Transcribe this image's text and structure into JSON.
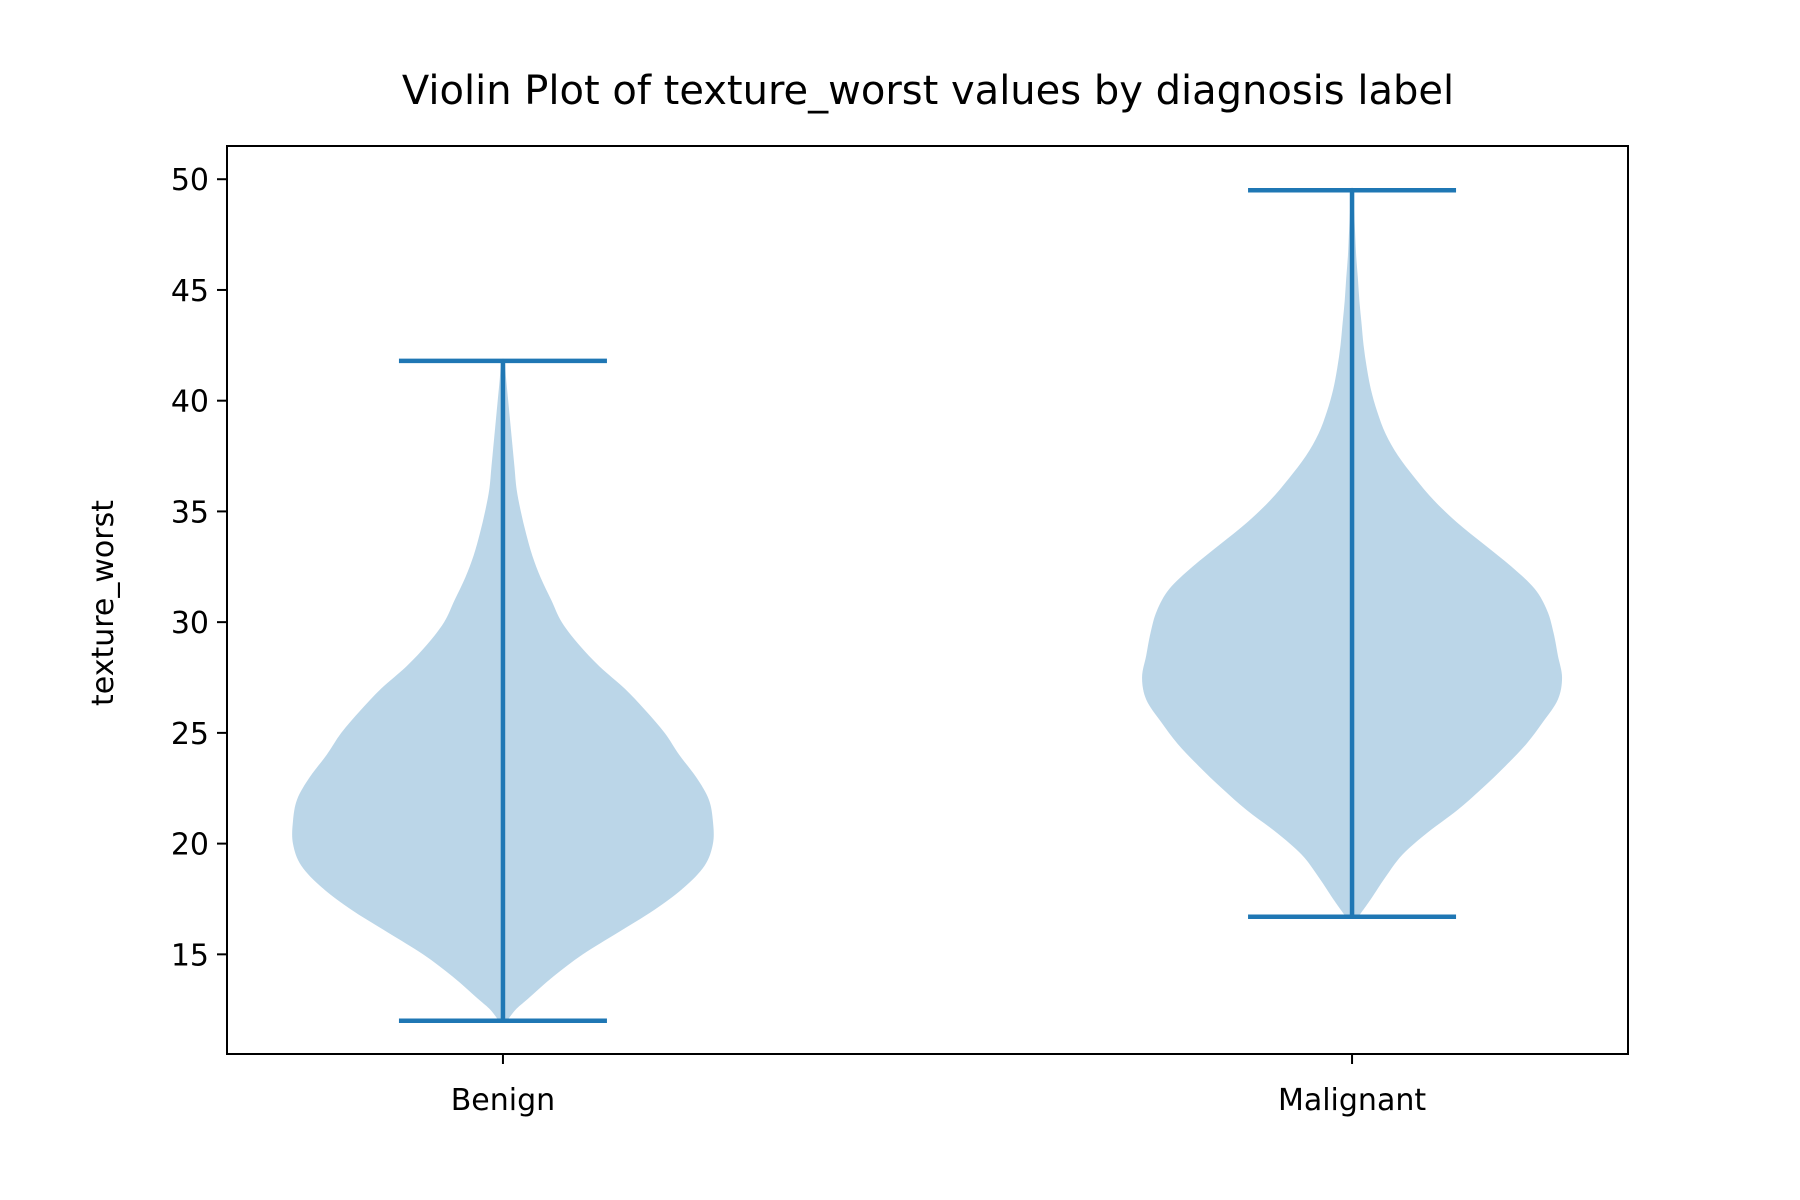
{
  "chart_data": {
    "type": "violin",
    "title": "Violin Plot of texture_worst values by diagnosis label",
    "xlabel": "",
    "ylabel": "texture_worst",
    "ylim": [
      10.5,
      51.5
    ],
    "yticks": [
      15,
      20,
      25,
      30,
      35,
      40,
      45,
      50
    ],
    "grid": false,
    "categories": [
      "Benign",
      "Malignant"
    ],
    "colors": {
      "body": "#1f77b4",
      "body_opacity": 0.3,
      "lines": "#1f77b4",
      "axes": "#000000"
    },
    "violins": [
      {
        "category": "Benign",
        "min": 12.0,
        "max": 41.8,
        "density_profile": [
          [
            12.0,
            0.02
          ],
          [
            12.5,
            0.06
          ],
          [
            13.0,
            0.12
          ],
          [
            14.0,
            0.24
          ],
          [
            15.0,
            0.38
          ],
          [
            16.0,
            0.55
          ],
          [
            17.0,
            0.72
          ],
          [
            18.0,
            0.86
          ],
          [
            19.0,
            0.96
          ],
          [
            20.0,
            1.0
          ],
          [
            21.0,
            1.0
          ],
          [
            22.0,
            0.98
          ],
          [
            23.0,
            0.92
          ],
          [
            24.0,
            0.84
          ],
          [
            25.0,
            0.77
          ],
          [
            26.0,
            0.68
          ],
          [
            27.0,
            0.58
          ],
          [
            28.0,
            0.46
          ],
          [
            29.0,
            0.36
          ],
          [
            30.0,
            0.28
          ],
          [
            31.0,
            0.23
          ],
          [
            32.0,
            0.18
          ],
          [
            33.0,
            0.14
          ],
          [
            34.0,
            0.11
          ],
          [
            35.0,
            0.085
          ],
          [
            36.0,
            0.065
          ],
          [
            37.0,
            0.055
          ],
          [
            38.0,
            0.045
          ],
          [
            39.0,
            0.035
          ],
          [
            40.0,
            0.025
          ],
          [
            41.0,
            0.015
          ],
          [
            41.8,
            0.008
          ]
        ]
      },
      {
        "category": "Malignant",
        "min": 16.7,
        "max": 49.5,
        "density_profile": [
          [
            16.7,
            0.03
          ],
          [
            17.5,
            0.09
          ],
          [
            18.5,
            0.16
          ],
          [
            19.5,
            0.24
          ],
          [
            20.5,
            0.36
          ],
          [
            21.5,
            0.5
          ],
          [
            22.5,
            0.62
          ],
          [
            23.5,
            0.73
          ],
          [
            24.5,
            0.83
          ],
          [
            25.5,
            0.91
          ],
          [
            26.5,
            0.98
          ],
          [
            27.5,
            1.0
          ],
          [
            28.5,
            0.98
          ],
          [
            29.5,
            0.96
          ],
          [
            30.5,
            0.93
          ],
          [
            31.5,
            0.87
          ],
          [
            32.5,
            0.76
          ],
          [
            33.5,
            0.63
          ],
          [
            34.5,
            0.5
          ],
          [
            35.5,
            0.39
          ],
          [
            36.5,
            0.3
          ],
          [
            37.5,
            0.22
          ],
          [
            38.5,
            0.16
          ],
          [
            39.5,
            0.12
          ],
          [
            40.5,
            0.09
          ],
          [
            41.5,
            0.07
          ],
          [
            42.5,
            0.055
          ],
          [
            43.5,
            0.045
          ],
          [
            44.5,
            0.035
          ],
          [
            45.5,
            0.028
          ],
          [
            46.5,
            0.02
          ],
          [
            47.5,
            0.015
          ],
          [
            48.5,
            0.01
          ],
          [
            49.5,
            0.005
          ]
        ]
      }
    ]
  }
}
